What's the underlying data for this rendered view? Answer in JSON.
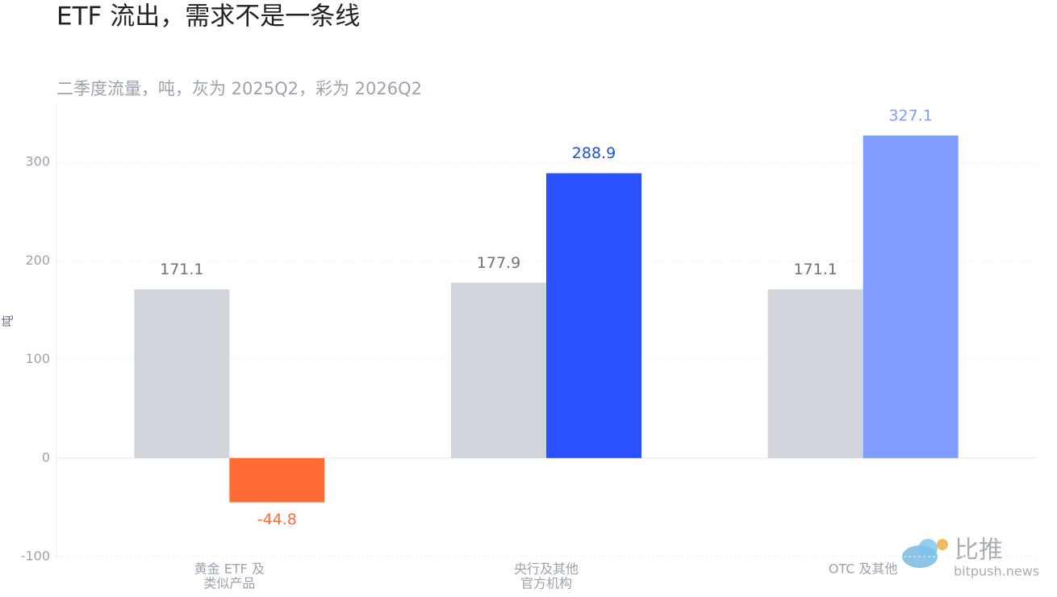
{
  "chart_data": {
    "type": "bar",
    "title": "ETF 流出，需求不是一条线",
    "subtitle": "二季度流量，吨，灰为 2025Q2，彩为 2026Q2",
    "y_label": "吨",
    "categories": [
      [
        "黄金 ETF 及",
        "类似产品"
      ],
      [
        "央行及其他",
        "官方机构"
      ],
      [
        "OTC 及其他"
      ]
    ],
    "series": [
      {
        "color": "#d1d5db",
        "label_color": "#6b7280",
        "values": [
          171.1,
          177.9,
          171.1
        ]
      },
      {
        "colors": [
          "#ff6b35",
          "#2b50ff",
          "#809cff"
        ],
        "label_colors": [
          "#ff6b35",
          "#1f4fe0",
          "#7f9cff"
        ],
        "values": [
          -44.8,
          288.9,
          327.1
        ]
      }
    ],
    "ylim": [
      -100,
      350
    ],
    "yticks": [
      -100,
      0,
      100,
      200,
      300
    ],
    "grid": true
  },
  "watermark": {
    "brand": "比推",
    "site": "bitpush.news"
  }
}
